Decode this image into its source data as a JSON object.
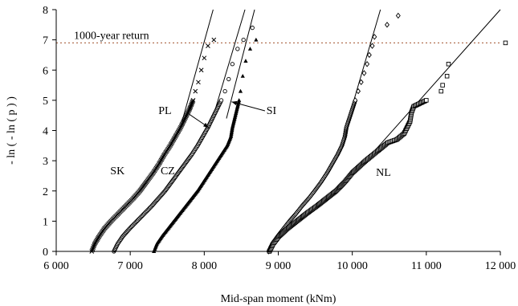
{
  "chart_data": {
    "type": "scatter",
    "title": "",
    "xlabel": "Mid-span moment (kNm)",
    "ylabel": "- ln ( - ln ( p ) )",
    "xlim": [
      6000,
      12000
    ],
    "ylim": [
      0,
      8
    ],
    "x_ticks": [
      6000,
      7000,
      8000,
      9000,
      10000,
      11000,
      12000
    ],
    "x_tick_labels": [
      "6 000",
      "7 000",
      "8 000",
      "9 000",
      "10 000",
      "11 000",
      "12 000"
    ],
    "y_ticks": [
      0,
      1,
      2,
      3,
      4,
      5,
      6,
      7,
      8
    ],
    "y_tick_labels": [
      "0",
      "1",
      "2",
      "3",
      "4",
      "5",
      "6",
      "7",
      "8"
    ],
    "grid": false,
    "reference_line": {
      "y": 6.9,
      "label": "1000-year return",
      "color": "#a0522d",
      "style": "dotted"
    },
    "series": [
      {
        "name": "SK",
        "marker": "asterisk",
        "points": [
          [
            6480,
            0
          ],
          [
            6520,
            0.25
          ],
          [
            6580,
            0.5
          ],
          [
            6650,
            0.75
          ],
          [
            6740,
            1.0
          ],
          [
            6840,
            1.25
          ],
          [
            6940,
            1.5
          ],
          [
            7040,
            1.75
          ],
          [
            7130,
            2.0
          ],
          [
            7220,
            2.3
          ],
          [
            7310,
            2.6
          ],
          [
            7390,
            2.9
          ],
          [
            7460,
            3.2
          ],
          [
            7540,
            3.5
          ],
          [
            7610,
            3.8
          ],
          [
            7680,
            4.1
          ],
          [
            7740,
            4.4
          ],
          [
            7800,
            4.7
          ],
          [
            7850,
            5.0
          ],
          [
            7880,
            5.3
          ],
          [
            7920,
            5.6
          ],
          [
            7960,
            6.0
          ],
          [
            8000,
            6.4
          ],
          [
            8050,
            6.8
          ],
          [
            8130,
            7.0
          ]
        ],
        "fit_line": [
          [
            7700,
            4.3
          ],
          [
            8120,
            8.0
          ]
        ]
      },
      {
        "name": "PL",
        "marker": "circle",
        "points": [
          [
            6780,
            0
          ],
          [
            6830,
            0.25
          ],
          [
            6900,
            0.5
          ],
          [
            6990,
            0.75
          ],
          [
            7090,
            1.0
          ],
          [
            7190,
            1.25
          ],
          [
            7290,
            1.5
          ],
          [
            7380,
            1.75
          ],
          [
            7470,
            2.0
          ],
          [
            7560,
            2.3
          ],
          [
            7650,
            2.6
          ],
          [
            7740,
            2.9
          ],
          [
            7830,
            3.2
          ],
          [
            7910,
            3.5
          ],
          [
            7980,
            3.8
          ],
          [
            8050,
            4.1
          ],
          [
            8110,
            4.4
          ],
          [
            8170,
            4.7
          ],
          [
            8230,
            5.0
          ],
          [
            8280,
            5.3
          ],
          [
            8330,
            5.7
          ],
          [
            8380,
            6.2
          ],
          [
            8450,
            6.7
          ],
          [
            8530,
            7.0
          ],
          [
            8650,
            7.4
          ]
        ],
        "fit_line": [
          [
            8100,
            4.3
          ],
          [
            8550,
            8.0
          ]
        ]
      },
      {
        "name": "CZ",
        "marker": "triangle",
        "points": [
          [
            7320,
            0
          ],
          [
            7360,
            0.25
          ],
          [
            7430,
            0.5
          ],
          [
            7510,
            0.75
          ],
          [
            7590,
            1.0
          ],
          [
            7670,
            1.25
          ],
          [
            7750,
            1.5
          ],
          [
            7830,
            1.75
          ],
          [
            7910,
            2.0
          ],
          [
            7990,
            2.3
          ],
          [
            8070,
            2.6
          ],
          [
            8150,
            2.9
          ],
          [
            8230,
            3.2
          ],
          [
            8310,
            3.5
          ],
          [
            8360,
            3.8
          ],
          [
            8380,
            4.1
          ],
          [
            8410,
            4.4
          ],
          [
            8440,
            4.7
          ],
          [
            8470,
            5.0
          ],
          [
            8490,
            5.3
          ],
          [
            8520,
            5.8
          ],
          [
            8560,
            6.3
          ],
          [
            8620,
            6.7
          ],
          [
            8700,
            7.0
          ]
        ],
        "fit_line": [
          [
            8300,
            4.4
          ],
          [
            8680,
            8.0
          ]
        ]
      },
      {
        "name": "",
        "marker": "diamond",
        "points": [
          [
            8870,
            0
          ],
          [
            8920,
            0.25
          ],
          [
            8990,
            0.5
          ],
          [
            9070,
            0.75
          ],
          [
            9150,
            1.0
          ],
          [
            9240,
            1.25
          ],
          [
            9320,
            1.5
          ],
          [
            9410,
            1.75
          ],
          [
            9490,
            2.0
          ],
          [
            9580,
            2.3
          ],
          [
            9660,
            2.6
          ],
          [
            9730,
            2.9
          ],
          [
            9800,
            3.2
          ],
          [
            9860,
            3.5
          ],
          [
            9900,
            3.8
          ],
          [
            9920,
            4.1
          ],
          [
            9960,
            4.4
          ],
          [
            10000,
            4.7
          ],
          [
            10040,
            5.0
          ],
          [
            10080,
            5.3
          ],
          [
            10120,
            5.6
          ],
          [
            10160,
            5.9
          ],
          [
            10200,
            6.2
          ],
          [
            10230,
            6.5
          ],
          [
            10270,
            6.8
          ],
          [
            10300,
            7.1
          ],
          [
            10470,
            7.5
          ],
          [
            10620,
            7.8
          ]
        ],
        "fit_line": [
          [
            9950,
            4.4
          ],
          [
            10380,
            8.0
          ]
        ]
      },
      {
        "name": "NL",
        "marker": "square",
        "points": [
          [
            8880,
            0
          ],
          [
            8930,
            0.25
          ],
          [
            9010,
            0.5
          ],
          [
            9120,
            0.75
          ],
          [
            9250,
            1.0
          ],
          [
            9380,
            1.25
          ],
          [
            9520,
            1.5
          ],
          [
            9650,
            1.75
          ],
          [
            9780,
            2.0
          ],
          [
            9900,
            2.3
          ],
          [
            10000,
            2.6
          ],
          [
            10090,
            2.8
          ],
          [
            10180,
            3.0
          ],
          [
            10280,
            3.2
          ],
          [
            10380,
            3.4
          ],
          [
            10480,
            3.6
          ],
          [
            10600,
            3.7
          ],
          [
            10700,
            3.9
          ],
          [
            10780,
            4.3
          ],
          [
            10800,
            4.6
          ],
          [
            10830,
            4.8
          ],
          [
            11000,
            5.0
          ],
          [
            11200,
            5.3
          ],
          [
            11220,
            5.5
          ],
          [
            11280,
            5.8
          ],
          [
            11300,
            6.2
          ],
          [
            12070,
            6.9
          ]
        ],
        "fit_line": [
          [
            10000,
            2.5
          ],
          [
            12000,
            8.0
          ]
        ]
      }
    ],
    "annotations": [
      {
        "text": "SK",
        "x": 6730,
        "y": 2.55
      },
      {
        "text": "PL",
        "x": 7380,
        "y": 4.55
      },
      {
        "text": "CZ",
        "x": 7410,
        "y": 2.55
      },
      {
        "text": "SI",
        "x": 8840,
        "y": 4.55
      },
      {
        "text": "NL",
        "x": 10320,
        "y": 2.5
      }
    ],
    "leader_lines": [
      {
        "from": [
          7790,
          4.55
        ],
        "to": [
          8060,
          4.1
        ]
      },
      {
        "from": [
          8820,
          4.65
        ],
        "to": [
          8370,
          4.95
        ]
      }
    ]
  }
}
